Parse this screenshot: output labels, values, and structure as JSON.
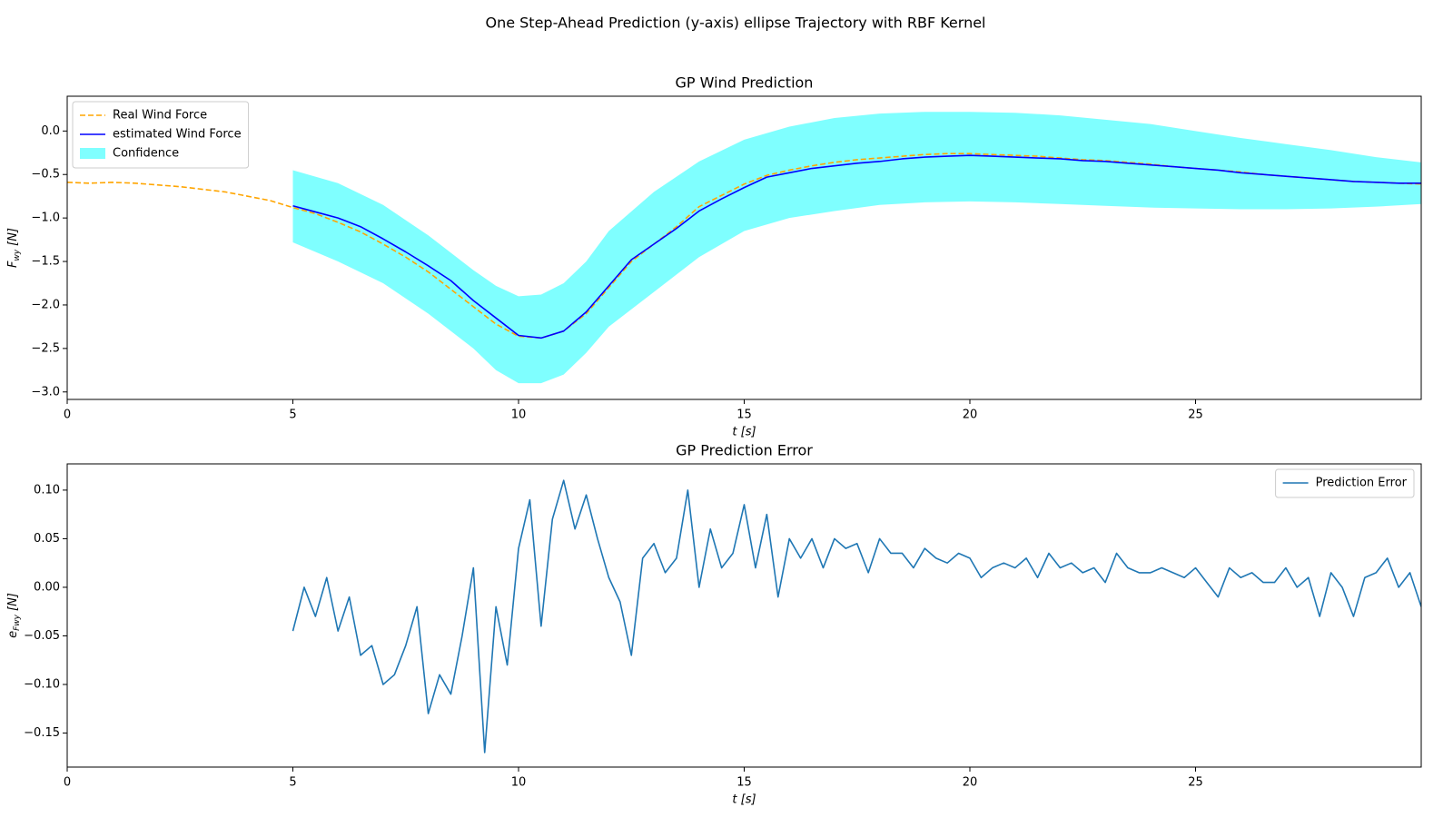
{
  "title": "One Step-Ahead Prediction (y-axis) ellipse Trajectory with RBF Kernel",
  "chart_data": [
    {
      "type": "line",
      "title": "GP Wind Prediction",
      "xlabel": "t [s]",
      "ylabel": {
        "symbol": "F",
        "subscript": "wy",
        "unit": "[N]"
      },
      "xlim": [
        0,
        30
      ],
      "ylim": [
        -3.086,
        0.4
      ],
      "xticks": [
        0,
        5,
        10,
        15,
        20,
        25
      ],
      "yticks": [
        {
          "value": -3,
          "label": "−3.0"
        },
        {
          "value": -2.5,
          "label": "−2.5"
        },
        {
          "value": -2,
          "label": "−2.0"
        },
        {
          "value": -1.5,
          "label": "−1.5"
        },
        {
          "value": -1,
          "label": "−1.0"
        },
        {
          "value": -0.5,
          "label": "−0.5"
        },
        {
          "value": 0,
          "label": "0.0"
        }
      ],
      "legend": "upper left",
      "series": [
        {
          "name": "Confidence",
          "kind": "band",
          "color": "#00ffff",
          "x": [
            5,
            6,
            7,
            8,
            9,
            9.5,
            10,
            10.5,
            11,
            11.5,
            12,
            13,
            14,
            15,
            16,
            17,
            18,
            19,
            20,
            21,
            22,
            23,
            24,
            25,
            26,
            27,
            28,
            29,
            30
          ],
          "upper": [
            -0.45,
            -0.6,
            -0.85,
            -1.2,
            -1.6,
            -1.78,
            -1.9,
            -1.88,
            -1.75,
            -1.5,
            -1.15,
            -0.7,
            -0.35,
            -0.1,
            0.05,
            0.15,
            0.2,
            0.22,
            0.22,
            0.21,
            0.18,
            0.13,
            0.08,
            0.0,
            -0.08,
            -0.15,
            -0.22,
            -0.3,
            -0.36
          ],
          "lower": [
            -1.28,
            -1.5,
            -1.75,
            -2.1,
            -2.5,
            -2.75,
            -2.9,
            -2.9,
            -2.8,
            -2.55,
            -2.25,
            -1.85,
            -1.45,
            -1.15,
            -1.0,
            -0.92,
            -0.85,
            -0.82,
            -0.81,
            -0.82,
            -0.84,
            -0.86,
            -0.88,
            -0.89,
            -0.9,
            -0.9,
            -0.89,
            -0.87,
            -0.84
          ]
        },
        {
          "name": "Real Wind Force",
          "kind": "line",
          "dashed": true,
          "color": "#ffa500",
          "x": [
            0,
            0.5,
            1,
            1.5,
            2,
            2.5,
            3,
            3.5,
            4,
            4.5,
            5,
            5.5,
            6,
            6.5,
            7,
            7.5,
            8,
            8.5,
            9,
            9.5,
            10,
            10.5,
            11,
            11.5,
            12,
            12.5,
            13,
            13.5,
            14,
            14.5,
            15,
            15.5,
            16,
            16.5,
            17,
            17.5,
            18,
            18.5,
            19,
            19.5,
            20,
            20.5,
            21,
            21.5,
            22,
            22.5,
            23,
            23.5,
            24,
            24.5,
            25,
            25.5,
            26,
            26.5,
            27,
            27.5,
            28,
            28.5,
            29,
            29.5,
            30
          ],
          "values": [
            -0.59,
            -0.6,
            -0.59,
            -0.6,
            -0.62,
            -0.64,
            -0.67,
            -0.7,
            -0.75,
            -0.8,
            -0.88,
            -0.95,
            -1.05,
            -1.16,
            -1.3,
            -1.45,
            -1.62,
            -1.82,
            -2.02,
            -2.22,
            -2.36,
            -2.38,
            -2.3,
            -2.1,
            -1.8,
            -1.5,
            -1.3,
            -1.1,
            -0.87,
            -0.74,
            -0.61,
            -0.51,
            -0.45,
            -0.4,
            -0.36,
            -0.33,
            -0.31,
            -0.29,
            -0.27,
            -0.26,
            -0.26,
            -0.27,
            -0.28,
            -0.29,
            -0.31,
            -0.33,
            -0.34,
            -0.36,
            -0.38,
            -0.41,
            -0.43,
            -0.45,
            -0.47,
            -0.5,
            -0.52,
            -0.54,
            -0.56,
            -0.58,
            -0.59,
            -0.6,
            -0.61
          ]
        },
        {
          "name": "estimated Wind Force",
          "kind": "line",
          "color": "#0000ff",
          "x": [
            5,
            5.5,
            6,
            6.5,
            7,
            7.5,
            8,
            8.5,
            9,
            9.5,
            10,
            10.5,
            11,
            11.5,
            12,
            12.5,
            13,
            13.5,
            14,
            14.5,
            15,
            15.5,
            16,
            16.5,
            17,
            17.5,
            18,
            18.5,
            19,
            19.5,
            20,
            20.5,
            21,
            21.5,
            22,
            22.5,
            23,
            23.5,
            24,
            24.5,
            25,
            25.5,
            26,
            26.5,
            27,
            27.5,
            28,
            28.5,
            29,
            29.5,
            30
          ],
          "values": [
            -0.86,
            -0.93,
            -1.0,
            -1.1,
            -1.24,
            -1.39,
            -1.55,
            -1.72,
            -1.95,
            -2.15,
            -2.35,
            -2.38,
            -2.3,
            -2.08,
            -1.78,
            -1.48,
            -1.3,
            -1.12,
            -0.92,
            -0.78,
            -0.65,
            -0.53,
            -0.48,
            -0.43,
            -0.4,
            -0.37,
            -0.35,
            -0.32,
            -0.3,
            -0.29,
            -0.28,
            -0.29,
            -0.3,
            -0.31,
            -0.32,
            -0.34,
            -0.35,
            -0.37,
            -0.39,
            -0.41,
            -0.43,
            -0.45,
            -0.48,
            -0.5,
            -0.52,
            -0.54,
            -0.56,
            -0.58,
            -0.59,
            -0.6,
            -0.6
          ]
        }
      ]
    },
    {
      "type": "line",
      "title": "GP Prediction Error",
      "xlabel": "t [s]",
      "ylabel": {
        "symbol": "e",
        "subscript": "Fwy",
        "unit": "[N]"
      },
      "xlim": [
        0,
        30
      ],
      "ylim": [
        -0.185,
        0.127
      ],
      "xticks": [
        0,
        5,
        10,
        15,
        20,
        25
      ],
      "yticks": [
        {
          "value": -0.15,
          "label": "−0.15"
        },
        {
          "value": -0.1,
          "label": "−0.10"
        },
        {
          "value": -0.05,
          "label": "−0.05"
        },
        {
          "value": 0,
          "label": "0.00"
        },
        {
          "value": 0.05,
          "label": "0.05"
        },
        {
          "value": 0.1,
          "label": "0.10"
        }
      ],
      "legend": "upper right",
      "series": [
        {
          "name": "Prediction Error",
          "kind": "line",
          "color": "#1f77b4",
          "x": [
            5,
            5.25,
            5.5,
            5.75,
            6,
            6.25,
            6.5,
            6.75,
            7,
            7.25,
            7.5,
            7.75,
            8,
            8.25,
            8.5,
            8.75,
            9,
            9.25,
            9.5,
            9.75,
            10,
            10.25,
            10.5,
            10.75,
            11,
            11.25,
            11.5,
            11.75,
            12,
            12.25,
            12.5,
            12.75,
            13,
            13.25,
            13.5,
            13.75,
            14,
            14.25,
            14.5,
            14.75,
            15,
            15.25,
            15.5,
            15.75,
            16,
            16.25,
            16.5,
            16.75,
            17,
            17.25,
            17.5,
            17.75,
            18,
            18.25,
            18.5,
            18.75,
            19,
            19.25,
            19.5,
            19.75,
            20,
            20.25,
            20.5,
            20.75,
            21,
            21.25,
            21.5,
            21.75,
            22,
            22.25,
            22.5,
            22.75,
            23,
            23.25,
            23.5,
            23.75,
            24,
            24.25,
            24.5,
            24.75,
            25,
            25.25,
            25.5,
            25.75,
            26,
            26.25,
            26.5,
            26.75,
            27,
            27.25,
            27.5,
            27.75,
            28,
            28.25,
            28.5,
            28.75,
            29,
            29.25,
            29.5,
            29.75,
            30
          ],
          "values": [
            -0.045,
            0.0,
            -0.03,
            0.01,
            -0.045,
            -0.01,
            -0.07,
            -0.06,
            -0.1,
            -0.09,
            -0.06,
            -0.02,
            -0.13,
            -0.09,
            -0.11,
            -0.05,
            0.02,
            -0.17,
            -0.02,
            -0.08,
            0.04,
            0.09,
            -0.04,
            0.07,
            0.11,
            0.06,
            0.095,
            0.05,
            0.01,
            -0.015,
            -0.07,
            0.03,
            0.045,
            0.015,
            0.03,
            0.1,
            0.0,
            0.06,
            0.02,
            0.035,
            0.085,
            0.02,
            0.075,
            -0.01,
            0.05,
            0.03,
            0.05,
            0.02,
            0.05,
            0.04,
            0.045,
            0.015,
            0.05,
            0.035,
            0.035,
            0.02,
            0.04,
            0.03,
            0.025,
            0.035,
            0.03,
            0.01,
            0.02,
            0.025,
            0.02,
            0.03,
            0.01,
            0.035,
            0.02,
            0.025,
            0.015,
            0.02,
            0.005,
            0.035,
            0.02,
            0.015,
            0.015,
            0.02,
            0.015,
            0.01,
            0.02,
            0.005,
            -0.01,
            0.02,
            0.01,
            0.015,
            0.005,
            0.005,
            0.02,
            0.0,
            0.01,
            -0.03,
            0.015,
            0.0,
            -0.03,
            0.01,
            0.015,
            0.03,
            0.0,
            0.015,
            -0.02
          ]
        }
      ]
    }
  ]
}
